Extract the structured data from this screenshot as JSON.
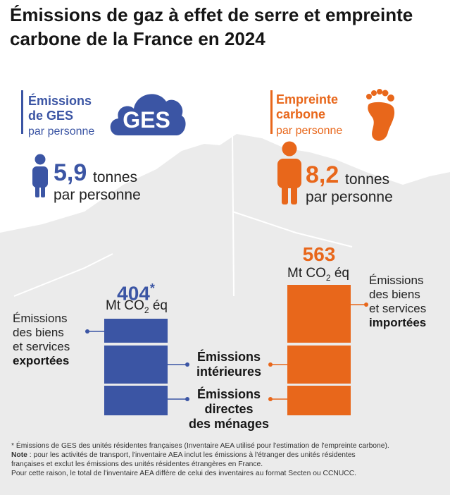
{
  "title": "Émissions de gaz à effet de serre et empreinte carbone de la France en 2024",
  "left": {
    "heading_1": "Émissions",
    "heading_2": "de GES",
    "subheading": "par personne",
    "badge_text": "GES",
    "per_capita_value": "5,9",
    "per_capita_unit_1": "tonnes",
    "per_capita_unit_2": "par personne",
    "total_value": "404",
    "total_star": "*",
    "total_unit_prefix": "Mt CO",
    "total_unit_sub": "2",
    "total_unit_suffix": " éq",
    "exports_label_1": "Émissions",
    "exports_label_2": "des biens",
    "exports_label_3": "et services",
    "exports_label_4": "exportées"
  },
  "right": {
    "heading_1": "Empreinte",
    "heading_2": "carbone",
    "subheading": "par personne",
    "per_capita_value": "8,2",
    "per_capita_unit_1": "tonnes",
    "per_capita_unit_2": "par personne",
    "total_value": "563",
    "total_unit_prefix": "Mt CO",
    "total_unit_sub": "2",
    "total_unit_suffix": " éq",
    "imports_label_1": "Émissions",
    "imports_label_2": "des biens",
    "imports_label_3": "et services",
    "imports_label_4": "importées"
  },
  "center": {
    "interieures_1": "Émissions",
    "interieures_2": "intérieures",
    "menages_1": "Émissions",
    "menages_2": "directes",
    "menages_3": "des ménages"
  },
  "footnote": {
    "line1": "* Émissions de GES des unités résidentes françaises (Inventaire AEA utilisé pour l'estimation de l'empreinte carbone).",
    "note_label": "Note",
    "line2": " : pour les activités de transport, l'inventaire AEA inclut les émissions à l'étranger des unités résidentes",
    "line3": "françaises et exclut les émissions des unités résidentes étrangères en France.",
    "line4": "Pour cette raison, le total de l'inventaire AEA diffère de celui des inventaires au format Secten ou CCNUCC."
  },
  "colors": {
    "blue": "#3B55A4",
    "orange": "#E8671B",
    "map_grey": "#EBEBEB"
  },
  "chart_data": {
    "type": "bar",
    "categories": [
      "Émissions de GES",
      "Empreinte carbone"
    ],
    "totals": [
      404,
      563
    ],
    "unit": "Mt CO2 éq",
    "series": [
      {
        "name": "Émissions directes des ménages",
        "values": [
          null,
          null
        ]
      },
      {
        "name": "Émissions intérieures",
        "values": [
          null,
          null
        ]
      },
      {
        "name": "Émissions des biens et services exportées",
        "values": [
          null,
          null
        ]
      },
      {
        "name": "Émissions des biens et services importées",
        "values": [
          null,
          null
        ]
      }
    ],
    "per_capita_tonnes": [
      5.9,
      8.2
    ],
    "legend": "none",
    "grid": false
  }
}
